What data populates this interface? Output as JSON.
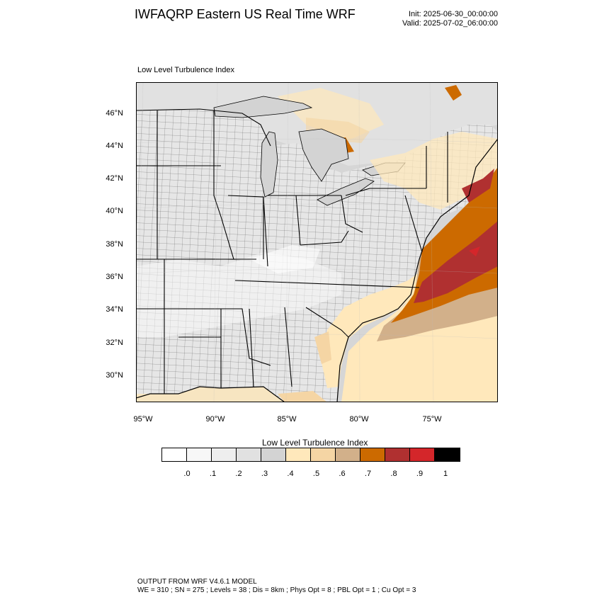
{
  "header": {
    "title": "IWFAQRP Eastern US Real Time WRF",
    "init": "Init: 2025-06-30_00:00:00",
    "valid": "Valid: 2025-07-02_06:00:00"
  },
  "map": {
    "field_title": "Low Level Turbulence Index",
    "lat_labels": [
      "46°N",
      "44°N",
      "42°N",
      "40°N",
      "38°N",
      "36°N",
      "34°N",
      "32°N",
      "30°N"
    ],
    "lon_labels": [
      "95°W",
      "90°W",
      "85°W",
      "80°W",
      "75°W"
    ]
  },
  "colorbar": {
    "title": "Low Level Turbulence Index",
    "colors": [
      "#ffffff",
      "#f7f7f7",
      "#eeeeee",
      "#e1e1e1",
      "#d3d3d3",
      "#ffe8bb",
      "#f5d5a4",
      "#d2b08a",
      "#cc6a00",
      "#b03030",
      "#d4262a",
      "#000000"
    ],
    "labels": [
      ".0",
      ".1",
      ".2",
      ".3",
      ".4",
      ".5",
      ".6",
      ".7",
      ".8",
      ".9",
      "1"
    ]
  },
  "footer": {
    "line1": "OUTPUT FROM WRF V4.6.1 MODEL",
    "line2": "WE = 310 ; SN = 275 ; Levels = 38 ; Dis = 8km ; Phys Opt = 8 ; PBL Opt = 1 ; Cu Opt = 3"
  }
}
